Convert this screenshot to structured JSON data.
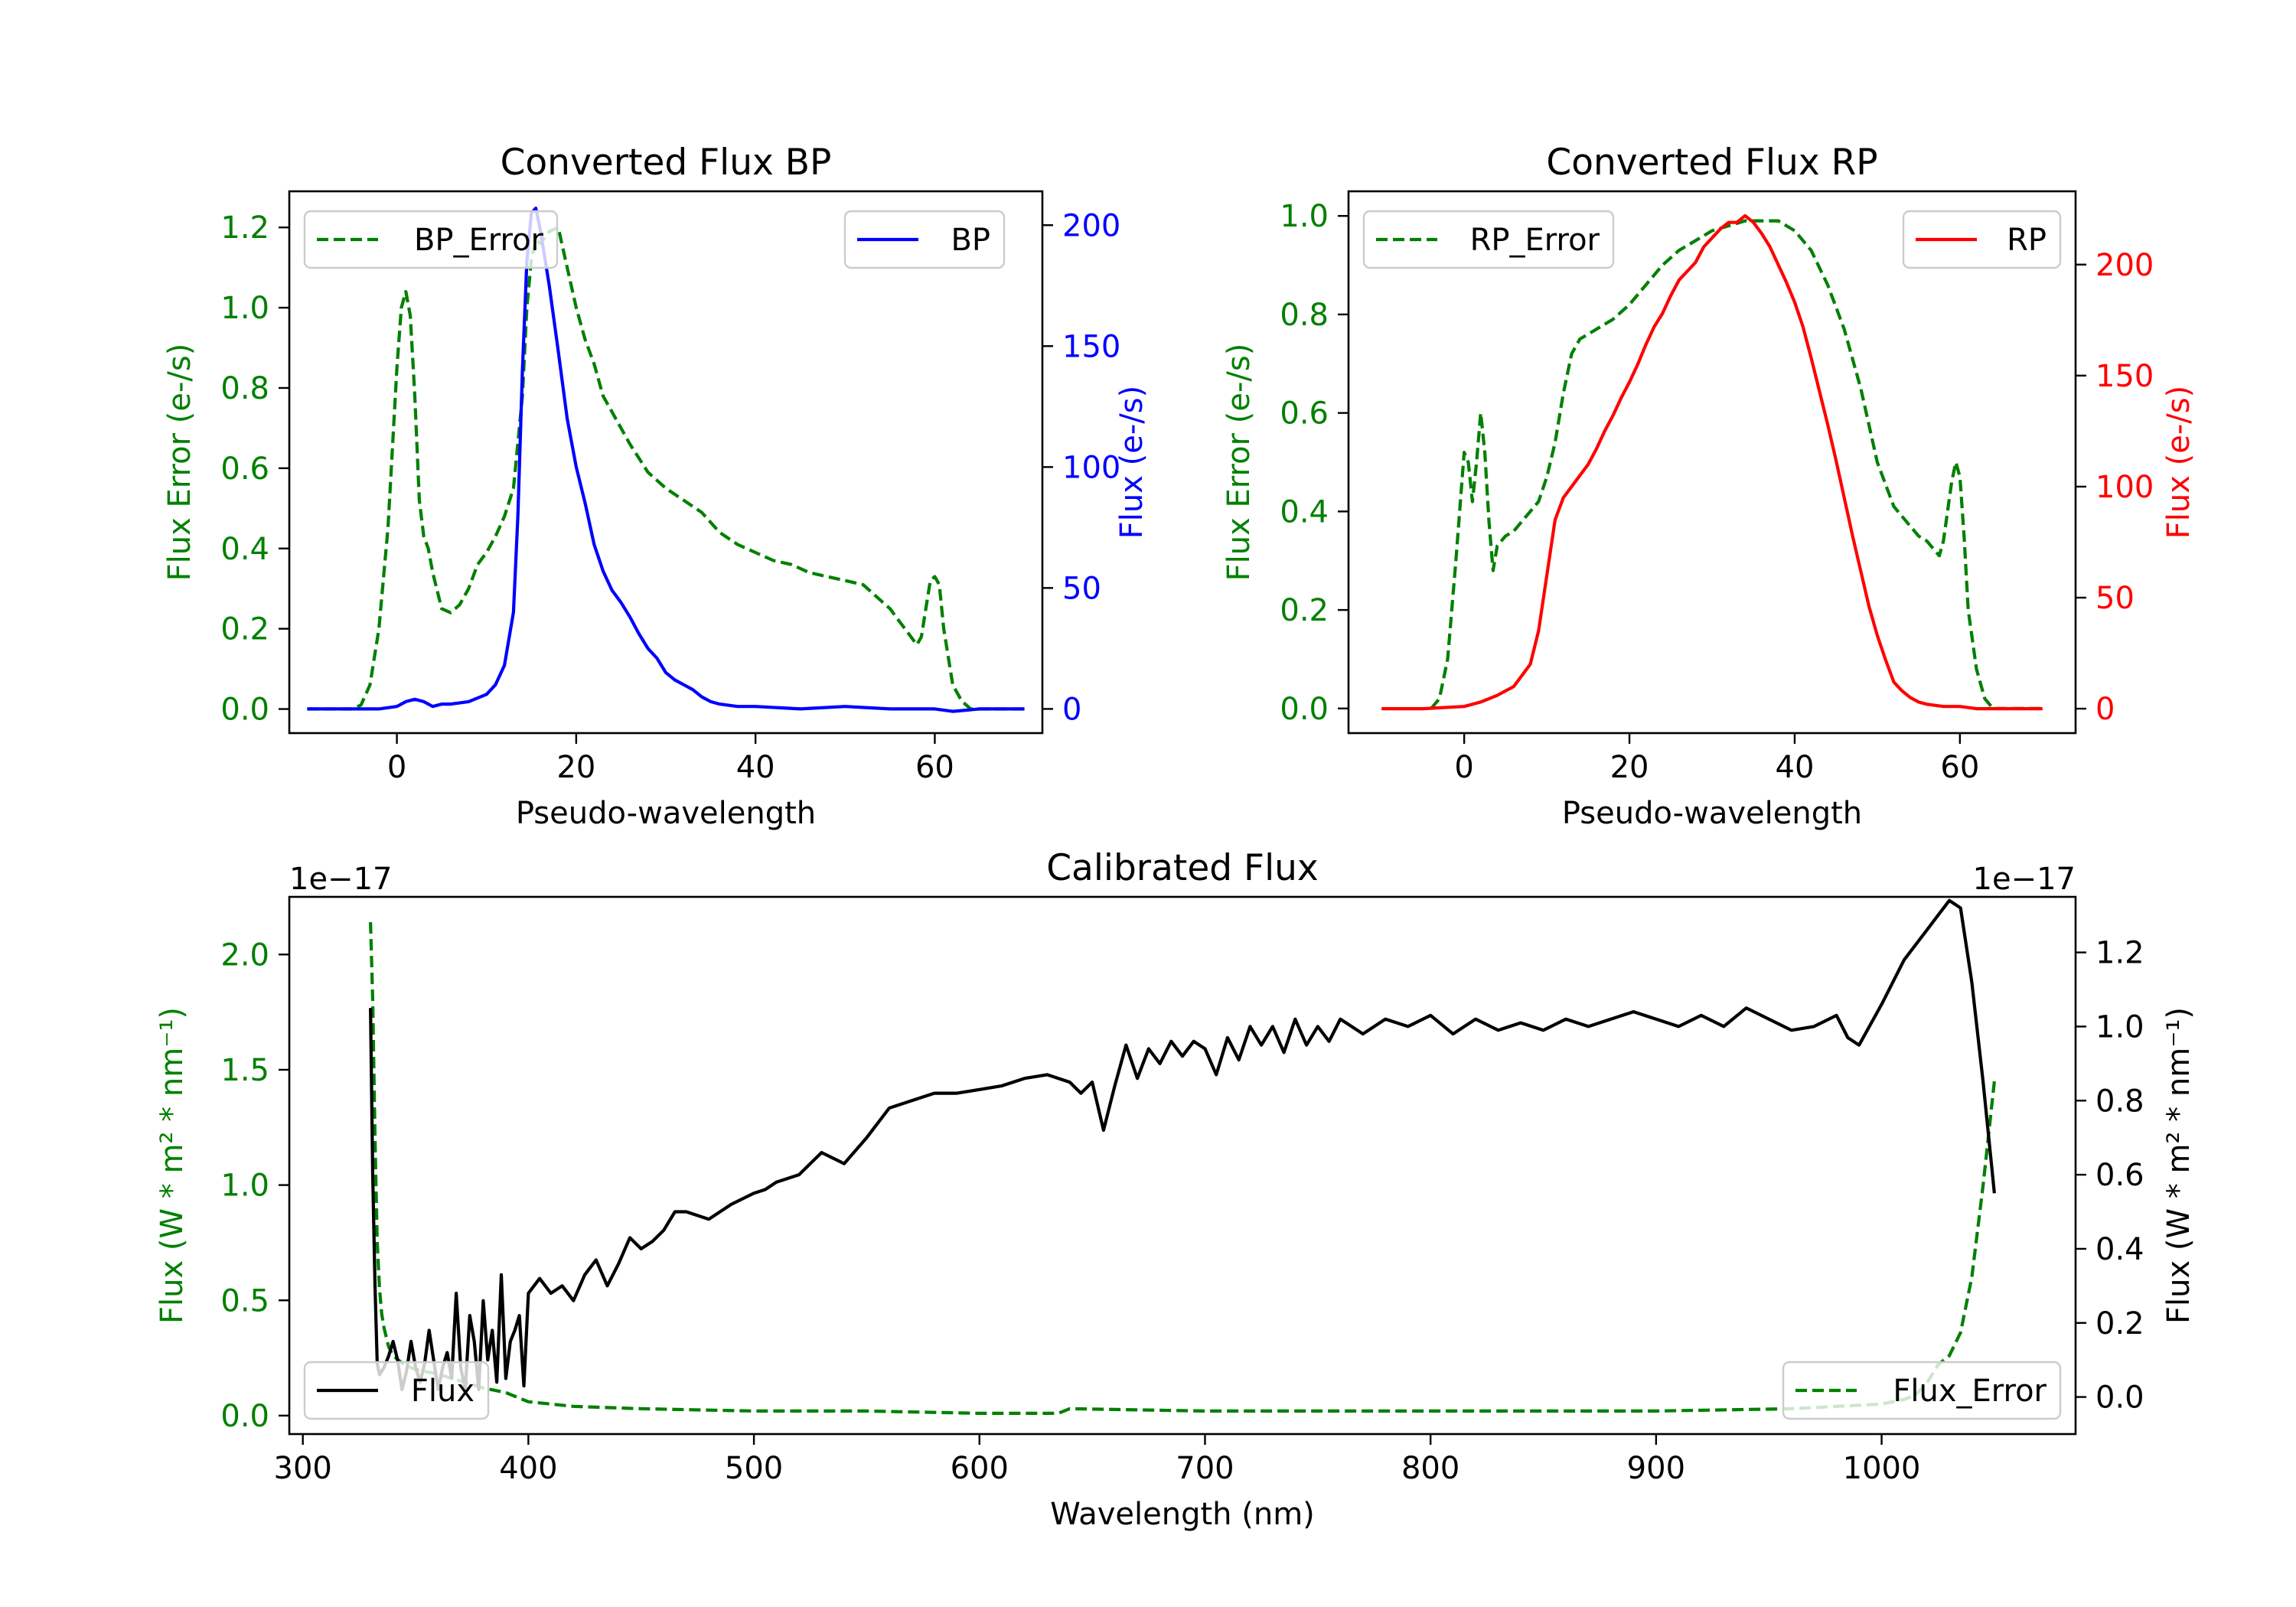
{
  "colors": {
    "green": "#008000",
    "blue": "#0000ff",
    "red": "#ff0000",
    "black": "#000000"
  },
  "chart_data": [
    {
      "id": "bp",
      "type": "line",
      "title": "Converted Flux BP",
      "xlabel": "Pseudo-wavelength",
      "ylabel_left": "Flux Error (e-/s)",
      "ylabel_right": "Flux (e-/s)",
      "xlim": [
        -12,
        72
      ],
      "ylim_left": [
        -0.06,
        1.29
      ],
      "ylim_right": [
        -10,
        214
      ],
      "xticks": [
        0,
        20,
        40,
        60
      ],
      "yticks_left": [
        0.0,
        0.2,
        0.4,
        0.6,
        0.8,
        1.0,
        1.2
      ],
      "yticks_right": [
        0,
        50,
        100,
        150,
        200
      ],
      "series": [
        {
          "name": "BP_Error",
          "axis": "left",
          "color": "#008000",
          "style": "dashed",
          "x": [
            -10,
            -5,
            -4,
            -3,
            -2,
            -1,
            0,
            0.5,
            1,
            1.5,
            2,
            2.5,
            3,
            3.5,
            4,
            5,
            6,
            7,
            8,
            9,
            10,
            11,
            12,
            13,
            14,
            14.5,
            15,
            15.5,
            16,
            17,
            18,
            19,
            20,
            21,
            22,
            23,
            24,
            25,
            26,
            28,
            30,
            32,
            34,
            36,
            38,
            40,
            42,
            44,
            46,
            48,
            50,
            52,
            54,
            55,
            56,
            57,
            58,
            58.5,
            59,
            59.5,
            60,
            60.5,
            61,
            62,
            63,
            64,
            66,
            68,
            70
          ],
          "y": [
            0,
            0,
            0.01,
            0.06,
            0.2,
            0.45,
            0.85,
            1.0,
            1.04,
            0.98,
            0.78,
            0.52,
            0.43,
            0.4,
            0.34,
            0.25,
            0.24,
            0.26,
            0.3,
            0.36,
            0.39,
            0.43,
            0.48,
            0.55,
            0.78,
            1.0,
            1.12,
            1.17,
            1.16,
            1.19,
            1.2,
            1.1,
            1.0,
            0.92,
            0.86,
            0.78,
            0.74,
            0.7,
            0.66,
            0.59,
            0.55,
            0.52,
            0.49,
            0.44,
            0.41,
            0.39,
            0.37,
            0.36,
            0.34,
            0.33,
            0.32,
            0.31,
            0.27,
            0.25,
            0.22,
            0.19,
            0.16,
            0.18,
            0.25,
            0.32,
            0.33,
            0.31,
            0.2,
            0.06,
            0.02,
            0,
            0,
            0,
            0
          ]
        },
        {
          "name": "BP",
          "axis": "right",
          "color": "#0000ff",
          "style": "solid",
          "x": [
            -10,
            -5,
            -2,
            0,
            1,
            2,
            3,
            4,
            5,
            6,
            8,
            10,
            11,
            12,
            13,
            13.5,
            14,
            14.5,
            15,
            15.5,
            16,
            17,
            18,
            19,
            20,
            21,
            22,
            23,
            24,
            25,
            26,
            27,
            28,
            29,
            30,
            31,
            32,
            33,
            34,
            35,
            36,
            38,
            40,
            45,
            50,
            55,
            60,
            62,
            65,
            70
          ],
          "y": [
            0,
            0,
            0,
            1,
            3,
            4,
            3,
            1,
            2,
            2,
            3,
            6,
            10,
            18,
            40,
            80,
            140,
            185,
            205,
            207,
            198,
            175,
            148,
            120,
            100,
            85,
            68,
            57,
            49,
            44,
            38,
            31,
            25,
            21,
            15,
            12,
            10,
            8,
            5,
            3,
            2,
            1,
            1,
            0,
            1,
            0,
            0,
            -1,
            0,
            0
          ]
        }
      ],
      "legend": [
        {
          "label": "BP_Error",
          "loc": "upper left"
        },
        {
          "label": "BP",
          "loc": "upper right"
        }
      ]
    },
    {
      "id": "rp",
      "type": "line",
      "title": "Converted Flux RP",
      "xlabel": "Pseudo-wavelength",
      "ylabel_left": "Flux Error (e-/s)",
      "ylabel_right": "Flux (e-/s)",
      "xlim": [
        -14,
        74
      ],
      "ylim_left": [
        -0.05,
        1.05
      ],
      "ylim_right": [
        -11,
        233
      ],
      "xticks": [
        0,
        20,
        40,
        60
      ],
      "yticks_left": [
        0.0,
        0.2,
        0.4,
        0.6,
        0.8,
        1.0
      ],
      "yticks_right": [
        0,
        50,
        100,
        150,
        200
      ],
      "series": [
        {
          "name": "RP_Error",
          "axis": "left",
          "color": "#008000",
          "style": "dashed",
          "x": [
            -4,
            -3,
            -2,
            -1,
            0,
            0.5,
            1,
            1.5,
            2,
            2.5,
            3,
            3.5,
            4,
            5,
            6,
            7,
            8,
            9,
            10,
            11,
            12,
            13,
            14,
            15,
            16,
            18,
            20,
            22,
            24,
            26,
            28,
            30,
            32,
            34,
            36,
            38,
            40,
            42,
            44,
            46,
            48,
            50,
            52,
            54,
            55,
            56,
            57,
            57.5,
            58,
            58.5,
            59,
            59.5,
            60,
            60.5,
            61,
            62,
            63,
            64,
            66,
            70
          ],
          "y": [
            0,
            0.02,
            0.1,
            0.3,
            0.52,
            0.5,
            0.42,
            0.5,
            0.6,
            0.52,
            0.38,
            0.28,
            0.33,
            0.35,
            0.36,
            0.38,
            0.4,
            0.42,
            0.47,
            0.54,
            0.64,
            0.72,
            0.75,
            0.76,
            0.77,
            0.79,
            0.82,
            0.86,
            0.9,
            0.93,
            0.95,
            0.97,
            0.98,
            0.99,
            0.99,
            0.99,
            0.97,
            0.93,
            0.86,
            0.77,
            0.65,
            0.5,
            0.41,
            0.37,
            0.35,
            0.34,
            0.32,
            0.31,
            0.34,
            0.4,
            0.46,
            0.5,
            0.47,
            0.35,
            0.2,
            0.08,
            0.02,
            0,
            0,
            0
          ]
        },
        {
          "name": "RP",
          "axis": "right",
          "color": "#ff0000",
          "style": "solid",
          "x": [
            -10,
            -5,
            0,
            2,
            4,
            6,
            8,
            9,
            10,
            11,
            12,
            13,
            14,
            15,
            16,
            17,
            18,
            19,
            20,
            21,
            22,
            23,
            24,
            25,
            26,
            27,
            28,
            29,
            30,
            31,
            32,
            33,
            34,
            35,
            36,
            37,
            38,
            39,
            40,
            41,
            42,
            43,
            44,
            45,
            46,
            47,
            48,
            49,
            50,
            51,
            52,
            53,
            54,
            55,
            56,
            58,
            60,
            62,
            65,
            70
          ],
          "y": [
            0,
            0,
            1,
            3,
            6,
            10,
            20,
            35,
            60,
            85,
            95,
            100,
            105,
            110,
            117,
            125,
            132,
            140,
            147,
            155,
            164,
            172,
            178,
            186,
            193,
            197,
            201,
            208,
            212,
            216,
            219,
            219,
            222,
            219,
            214,
            208,
            200,
            192,
            183,
            172,
            158,
            143,
            128,
            112,
            95,
            78,
            62,
            46,
            33,
            22,
            12,
            8,
            5,
            3,
            2,
            1,
            1,
            0,
            0,
            0
          ]
        }
      ],
      "legend": [
        {
          "label": "RP_Error",
          "loc": "upper left"
        },
        {
          "label": "RP",
          "loc": "upper right"
        }
      ]
    },
    {
      "id": "cal",
      "type": "line",
      "title": "Calibrated Flux",
      "xlabel": "Wavelength (nm)",
      "ylabel_left": "Flux (W * m² * nm⁻¹)",
      "ylabel_right": "Flux (W * m² * nm⁻¹)",
      "offset_left": "1e−17",
      "offset_right": "1e−17",
      "xlim": [
        294,
        1086
      ],
      "ylim_left": [
        -0.08,
        2.25
      ],
      "ylim_right": [
        -0.1,
        1.35
      ],
      "xticks": [
        300,
        400,
        500,
        600,
        700,
        800,
        900,
        1000
      ],
      "yticks_left": [
        0.0,
        0.5,
        1.0,
        1.5,
        2.0
      ],
      "yticks_right": [
        0.0,
        0.2,
        0.4,
        0.6,
        0.8,
        1.0,
        1.2
      ],
      "series": [
        {
          "name": "Flux_Error",
          "axis": "left",
          "color": "#008000",
          "style": "dashed",
          "x": [
            330,
            331,
            332,
            333,
            334,
            335,
            336,
            338,
            340,
            345,
            350,
            355,
            360,
            370,
            380,
            390,
            400,
            420,
            450,
            500,
            550,
            600,
            635,
            640,
            700,
            800,
            900,
            960,
            1000,
            1010,
            1015,
            1020,
            1025,
            1030,
            1035,
            1040,
            1045,
            1050
          ],
          "y": [
            2.14,
            1.8,
            1.2,
            0.75,
            0.55,
            0.44,
            0.38,
            0.3,
            0.26,
            0.22,
            0.2,
            0.19,
            0.18,
            0.15,
            0.12,
            0.1,
            0.06,
            0.04,
            0.03,
            0.02,
            0.02,
            0.01,
            0.01,
            0.03,
            0.02,
            0.02,
            0.02,
            0.03,
            0.05,
            0.07,
            0.09,
            0.14,
            0.22,
            0.26,
            0.36,
            0.6,
            1.0,
            1.45
          ]
        },
        {
          "name": "Flux",
          "axis": "right",
          "color": "#000000",
          "style": "solid",
          "x": [
            330,
            331,
            332,
            333,
            334,
            336,
            338,
            340,
            342,
            344,
            346,
            348,
            350,
            352,
            354,
            356,
            358,
            360,
            362,
            364,
            366,
            368,
            370,
            372,
            374,
            376,
            378,
            380,
            382,
            384,
            386,
            388,
            390,
            392,
            394,
            396,
            398,
            400,
            405,
            410,
            415,
            420,
            425,
            430,
            435,
            440,
            445,
            450,
            455,
            460,
            465,
            470,
            480,
            490,
            500,
            505,
            510,
            520,
            530,
            540,
            550,
            560,
            570,
            580,
            590,
            600,
            610,
            620,
            630,
            640,
            645,
            650,
            655,
            660,
            665,
            670,
            675,
            680,
            685,
            690,
            695,
            700,
            705,
            710,
            715,
            720,
            725,
            730,
            735,
            740,
            745,
            750,
            755,
            760,
            770,
            780,
            790,
            800,
            810,
            820,
            830,
            840,
            850,
            860,
            870,
            880,
            890,
            900,
            910,
            920,
            930,
            940,
            950,
            960,
            970,
            980,
            985,
            990,
            1000,
            1010,
            1020,
            1025,
            1030,
            1035,
            1040,
            1045,
            1050
          ],
          "y": [
            1.05,
            0.6,
            0.3,
            0.09,
            0.06,
            0.08,
            0.11,
            0.15,
            0.1,
            0.02,
            0.07,
            0.15,
            0.08,
            0.04,
            0.09,
            0.18,
            0.1,
            0.02,
            0.08,
            0.12,
            0.05,
            0.28,
            0.08,
            0.02,
            0.22,
            0.15,
            0.02,
            0.26,
            0.1,
            0.18,
            0.04,
            0.33,
            0.05,
            0.15,
            0.18,
            0.22,
            0.03,
            0.28,
            0.32,
            0.28,
            0.3,
            0.26,
            0.33,
            0.37,
            0.3,
            0.36,
            0.43,
            0.4,
            0.42,
            0.45,
            0.5,
            0.5,
            0.48,
            0.52,
            0.55,
            0.56,
            0.58,
            0.6,
            0.66,
            0.63,
            0.7,
            0.78,
            0.8,
            0.82,
            0.82,
            0.83,
            0.84,
            0.86,
            0.87,
            0.85,
            0.82,
            0.85,
            0.72,
            0.84,
            0.95,
            0.86,
            0.94,
            0.9,
            0.96,
            0.92,
            0.96,
            0.94,
            0.87,
            0.97,
            0.91,
            1.0,
            0.95,
            1.0,
            0.93,
            1.02,
            0.95,
            1.0,
            0.96,
            1.02,
            0.98,
            1.02,
            1.0,
            1.03,
            0.98,
            1.02,
            0.99,
            1.01,
            0.99,
            1.02,
            1.0,
            1.02,
            1.04,
            1.02,
            1.0,
            1.03,
            1.0,
            1.05,
            1.02,
            0.99,
            1.0,
            1.03,
            0.97,
            0.95,
            1.06,
            1.18,
            1.26,
            1.3,
            1.34,
            1.32,
            1.12,
            0.85,
            0.55
          ]
        }
      ],
      "legend": [
        {
          "label": "Flux",
          "loc": "lower left"
        },
        {
          "label": "Flux_Error",
          "loc": "lower right"
        }
      ]
    }
  ]
}
